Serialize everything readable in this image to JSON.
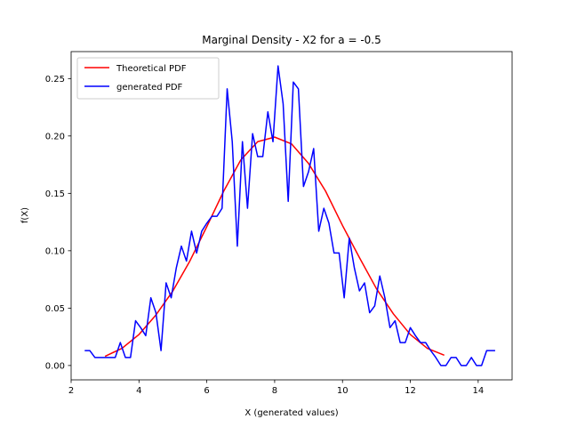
{
  "chart_data": {
    "type": "line",
    "title": "Marginal Density - X2 for a = -0.5",
    "xlabel": "X (generated values)",
    "ylabel": "f(X)",
    "xlim": [
      2.0,
      15.0
    ],
    "ylim": [
      -0.0125,
      0.2735
    ],
    "xticks": [
      2,
      4,
      6,
      8,
      10,
      12,
      14
    ],
    "yticks": [
      0.0,
      0.05,
      0.1,
      0.15,
      0.2,
      0.25
    ],
    "ytick_labels": [
      "0.00",
      "0.05",
      "0.10",
      "0.15",
      "0.20",
      "0.25"
    ],
    "grid": false,
    "legend_position": "top-left",
    "series": [
      {
        "name": "Theoretical PDF",
        "color": "#ff0000",
        "x": [
          3.0,
          3.5,
          4.0,
          4.5,
          5.0,
          5.5,
          6.0,
          6.5,
          7.0,
          7.5,
          8.0,
          8.5,
          9.0,
          9.5,
          10.0,
          10.5,
          11.0,
          11.5,
          12.0,
          12.5,
          13.0
        ],
        "values": [
          0.008,
          0.015,
          0.027,
          0.044,
          0.065,
          0.091,
          0.121,
          0.152,
          0.179,
          0.195,
          0.199,
          0.193,
          0.176,
          0.152,
          0.122,
          0.094,
          0.067,
          0.045,
          0.027,
          0.015,
          0.009
        ]
      },
      {
        "name": "generated PDF",
        "color": "#0000ff",
        "x": [
          2.4,
          2.55,
          2.7,
          2.85,
          3.0,
          3.15,
          3.3,
          3.45,
          3.6,
          3.75,
          3.9,
          4.05,
          4.2,
          4.35,
          4.5,
          4.65,
          4.8,
          4.95,
          5.1,
          5.25,
          5.4,
          5.55,
          5.7,
          5.85,
          6.0,
          6.15,
          6.3,
          6.45,
          6.6,
          6.75,
          6.9,
          7.05,
          7.2,
          7.35,
          7.5,
          7.65,
          7.8,
          7.95,
          8.1,
          8.25,
          8.4,
          8.55,
          8.7,
          8.85,
          9.0,
          9.15,
          9.3,
          9.45,
          9.6,
          9.75,
          9.9,
          10.05,
          10.2,
          10.35,
          10.5,
          10.65,
          10.8,
          10.95,
          11.1,
          11.25,
          11.4,
          11.55,
          11.7,
          11.85,
          12.0,
          12.15,
          12.3,
          12.45,
          12.6,
          12.75,
          12.9,
          13.05,
          13.2,
          13.35,
          13.5,
          13.65,
          13.8,
          13.95,
          14.1,
          14.25,
          14.4,
          14.5
        ],
        "values": [
          0.013,
          0.013,
          0.007,
          0.007,
          0.007,
          0.007,
          0.007,
          0.02,
          0.007,
          0.007,
          0.039,
          0.033,
          0.026,
          0.059,
          0.046,
          0.013,
          0.072,
          0.059,
          0.085,
          0.104,
          0.091,
          0.117,
          0.098,
          0.117,
          0.124,
          0.13,
          0.13,
          0.137,
          0.241,
          0.195,
          0.104,
          0.195,
          0.137,
          0.202,
          0.182,
          0.182,
          0.221,
          0.195,
          0.261,
          0.228,
          0.143,
          0.247,
          0.241,
          0.156,
          0.169,
          0.189,
          0.117,
          0.137,
          0.124,
          0.098,
          0.098,
          0.059,
          0.111,
          0.085,
          0.065,
          0.072,
          0.046,
          0.052,
          0.078,
          0.059,
          0.033,
          0.039,
          0.02,
          0.02,
          0.033,
          0.026,
          0.02,
          0.02,
          0.013,
          0.007,
          0.0,
          0.0,
          0.007,
          0.007,
          0.0,
          0.0,
          0.007,
          0.0,
          0.0,
          0.013,
          0.013,
          0.013
        ]
      }
    ]
  }
}
